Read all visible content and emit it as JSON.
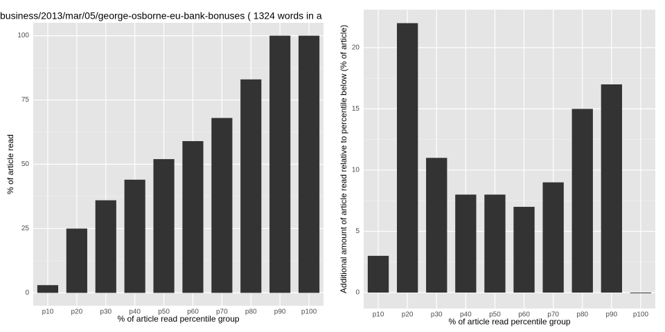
{
  "chart_data": [
    {
      "type": "bar",
      "title": "business/2013/mar/05/george-osborne-eu-bank-bonuses ( 1324 words in a",
      "x_label": "% of article read percentile group",
      "y_label": "% of article read",
      "categories": [
        "p10",
        "p20",
        "p30",
        "p40",
        "p50",
        "p60",
        "p70",
        "p80",
        "p90",
        "p100"
      ],
      "values": [
        3,
        25,
        36,
        44,
        52,
        59,
        68,
        83,
        100,
        100
      ],
      "color": "#333333",
      "ylim": [
        -5,
        105
      ],
      "yticks": [
        0,
        25,
        50,
        75,
        100
      ],
      "grid": true
    },
    {
      "type": "bar",
      "x_label": "% of article read percentile group",
      "y_label": "Additional amount of article read relative to percentile below (% of article)",
      "categories": [
        "p10",
        "p20",
        "p30",
        "p40",
        "p50",
        "p60",
        "p70",
        "p80",
        "p90",
        "p100"
      ],
      "values": [
        3,
        22,
        11,
        8,
        8,
        7,
        9,
        15,
        17,
        0
      ],
      "color": "#333333",
      "ylim": [
        -1.3,
        23.1
      ],
      "yticks": [
        0,
        5,
        10,
        15,
        20
      ],
      "grid": true
    }
  ]
}
